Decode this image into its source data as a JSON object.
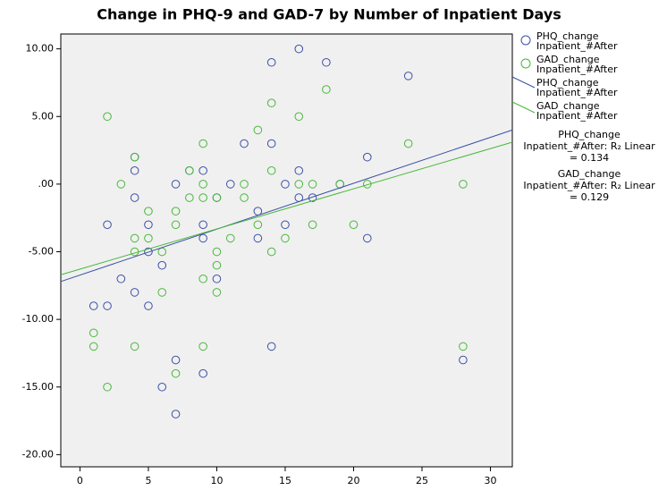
{
  "chart_data": {
    "type": "scatter",
    "title": "Change in PHQ-9 and GAD-7 by Number of Inpatient Days",
    "xlim": [
      -1.4,
      31.6
    ],
    "ylim": [
      -20.9,
      11.1
    ],
    "xticks": [
      0,
      5,
      10,
      15,
      20,
      25,
      30
    ],
    "yticks": [
      {
        "value": 10,
        "label": "10.00"
      },
      {
        "value": 5,
        "label": "5.00"
      },
      {
        "value": 0,
        "label": ".00"
      },
      {
        "value": -5,
        "label": "-5.00"
      },
      {
        "value": -10,
        "label": "-10.00"
      },
      {
        "value": -15,
        "label": "-15.00"
      },
      {
        "value": -20,
        "label": "-20.00"
      }
    ],
    "grid": false,
    "series": [
      {
        "name": "PHQ_change\nInpatient_#After",
        "color": "#3c4fa6",
        "x": [
          1,
          2,
          2,
          3,
          4,
          4,
          4,
          4,
          5,
          5,
          5,
          6,
          6,
          7,
          7,
          7,
          8,
          9,
          9,
          9,
          9,
          10,
          10,
          11,
          12,
          13,
          13,
          14,
          14,
          14,
          15,
          15,
          16,
          16,
          16,
          17,
          18,
          19,
          21,
          21,
          24,
          28
        ],
        "values": [
          -9,
          -3,
          -9,
          -7,
          2,
          1,
          -1,
          -8,
          -3,
          -5,
          -9,
          -6,
          -15,
          0,
          -13,
          -17,
          1,
          1,
          -3,
          -4,
          -14,
          -7,
          -1,
          0,
          3,
          -2,
          -4,
          9,
          3,
          -12,
          0,
          -3,
          10,
          1,
          -1,
          -1,
          9,
          0,
          2,
          -4,
          8,
          -13
        ]
      },
      {
        "name": "GAD_change\nInpatient_#After",
        "color": "#48b83a",
        "x": [
          1,
          1,
          2,
          2,
          3,
          4,
          4,
          4,
          4,
          5,
          5,
          6,
          6,
          7,
          7,
          7,
          8,
          8,
          9,
          9,
          9,
          9,
          9,
          10,
          10,
          10,
          10,
          11,
          12,
          12,
          13,
          13,
          14,
          14,
          14,
          15,
          16,
          16,
          17,
          17,
          18,
          19,
          20,
          21,
          24,
          28,
          28
        ],
        "values": [
          -11,
          -12,
          5,
          -15,
          0,
          2,
          -4,
          -5,
          -12,
          -2,
          -4,
          -5,
          -8,
          -2,
          -3,
          -14,
          1,
          -1,
          3,
          0,
          -1,
          -7,
          -12,
          -1,
          -5,
          -6,
          -8,
          -4,
          0,
          -1,
          4,
          -3,
          6,
          1,
          -5,
          -4,
          5,
          0,
          0,
          -3,
          7,
          0,
          -3,
          0,
          3,
          0,
          -12
        ]
      }
    ],
    "fit_lines": [
      {
        "name": "PHQ_change\nInpatient_#After",
        "color": "#3c4fa6",
        "x": [
          -1.4,
          31.6
        ],
        "values": [
          -7.2,
          4.0
        ]
      },
      {
        "name": "GAD_change\nInpatient_#After",
        "color": "#48b83a",
        "x": [
          -1.4,
          31.6
        ],
        "values": [
          -6.7,
          3.1
        ]
      }
    ],
    "annotations": [
      "PHQ_change\nInpatient_#After: R₂ Linear\n= 0.134",
      "GAD_change\nInpatient_#After: R₂ Linear\n= 0.129"
    ]
  }
}
